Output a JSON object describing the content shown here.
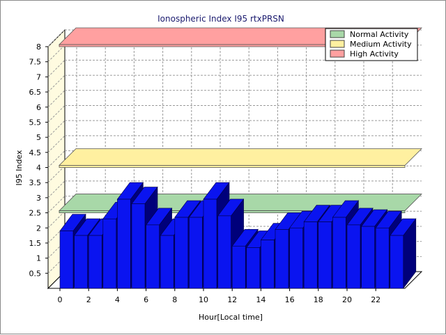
{
  "chart_data": {
    "type": "bar",
    "title": "Ionospheric Index I95 rtxPRSN",
    "xlabel": "Hour[Local time]",
    "ylabel": "I95 Index",
    "ylim": [
      0,
      8
    ],
    "yticks": [
      0.5,
      1,
      1.5,
      2,
      2.5,
      3,
      3.5,
      4,
      4.5,
      5,
      5.5,
      6,
      6.5,
      7,
      7.5,
      8
    ],
    "xticks": [
      0,
      2,
      4,
      6,
      8,
      10,
      12,
      14,
      16,
      18,
      20,
      22
    ],
    "grid": true,
    "legend_position": "top-right",
    "hours": [
      0,
      1,
      2,
      3,
      4,
      5,
      6,
      7,
      8,
      9,
      10,
      11,
      12,
      13,
      14,
      15,
      16,
      17,
      18,
      19,
      20,
      21,
      22,
      23
    ],
    "values": [
      1.9,
      1.75,
      1.75,
      2.3,
      2.95,
      2.8,
      2.1,
      1.75,
      2.35,
      2.35,
      2.95,
      2.4,
      1.4,
      1.35,
      1.6,
      1.95,
      2.0,
      2.2,
      2.2,
      2.35,
      2.1,
      2.05,
      2.0,
      1.75
    ],
    "bar_color": "#0a14f0",
    "bands": [
      {
        "name": "Normal Activity",
        "level": 2.5,
        "color": "#a8d8a8"
      },
      {
        "name": "Medium Activity",
        "level": 4.0,
        "color": "#fff0a0"
      },
      {
        "name": "High Activity",
        "level": 8.0,
        "color": "#ffa0a0"
      }
    ]
  }
}
